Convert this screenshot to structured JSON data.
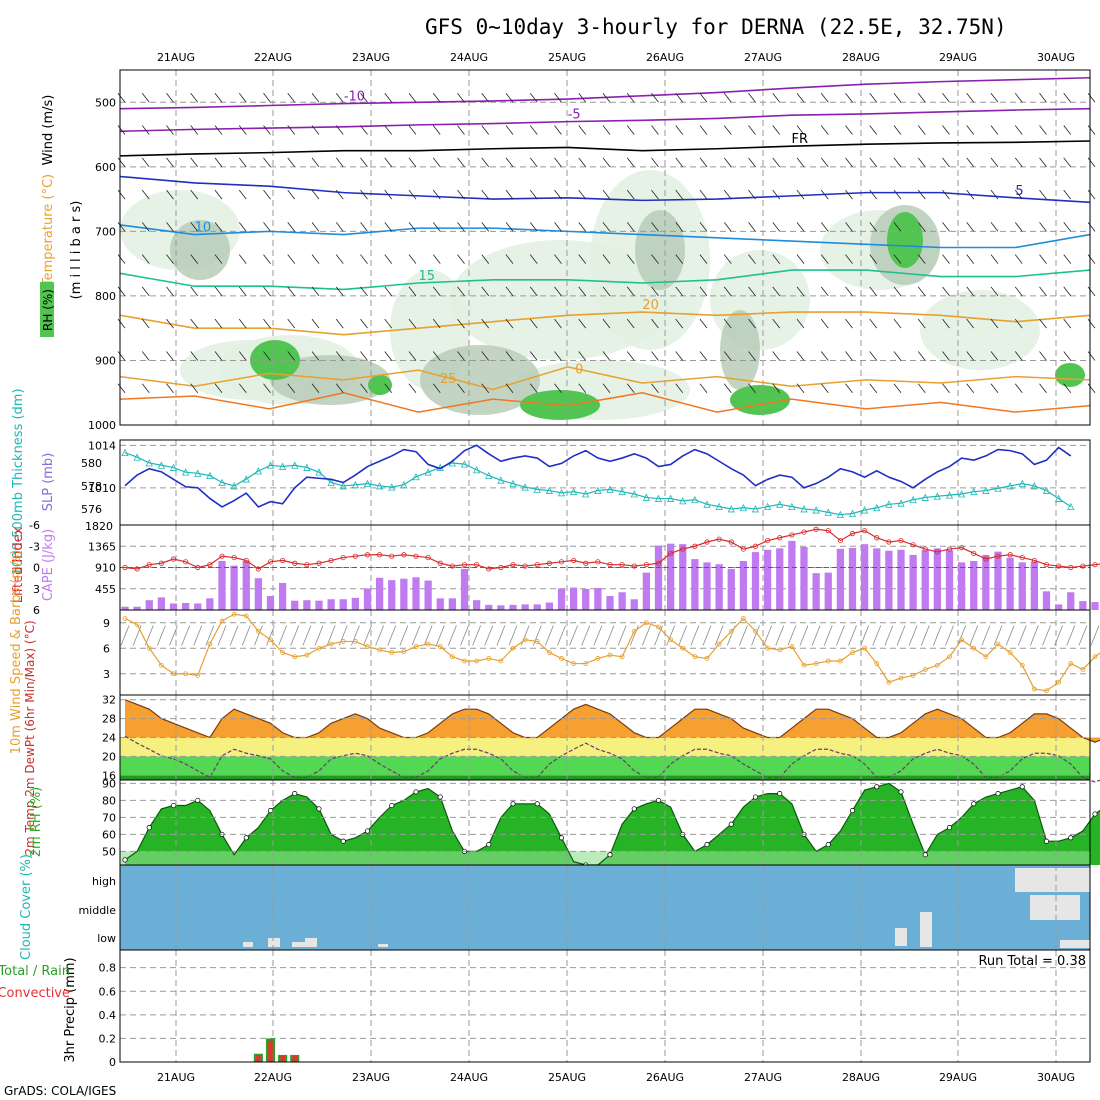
{
  "title": "GFS 0~10day 3-hourly for DERNA (22.5E, 32.75N)",
  "footer": "GrADS: COLA/IGES",
  "date_labels": [
    "21AUG",
    "22AUG",
    "23AUG",
    "24AUG",
    "25AUG",
    "26AUG",
    "27AUG",
    "28AUG",
    "29AUG",
    "30AUG"
  ],
  "colors": {
    "rh_green": "#52c452",
    "slp": "#1e2fc4",
    "thickness": "#1fb7b7",
    "lifted_index": "#d82b2b",
    "cape": "#c07bf0",
    "wind_speed": "#e8a030",
    "temp_orange": "#f5a030",
    "temp_yellow": "#f5f080",
    "rh2m_green": "#26b326",
    "cloud_blue": "#6baed6"
  },
  "chart_data": [
    {
      "type": "area",
      "panel": "upper-air",
      "ylabel_parts": [
        "RH (%)",
        "Temperature (°C)",
        "Wind (m/s)"
      ],
      "yaxis_label": "(m i l l i b a r s)",
      "yticks": [
        500,
        600,
        700,
        800,
        900,
        1000
      ],
      "ylim": [
        450,
        1000
      ],
      "isotherm_labels": [
        "-10",
        "-5",
        "FR",
        "5",
        "10",
        "15",
        "20",
        "25",
        "0"
      ],
      "isotherm_levels": [
        {
          "label": "-10",
          "color": "#8a1fb0",
          "p": [
            510,
            508,
            505,
            502,
            500,
            498,
            495,
            490,
            485,
            478,
            472,
            468,
            465,
            462
          ]
        },
        {
          "label": "-5",
          "color": "#8a1fb0",
          "p": [
            545,
            542,
            540,
            538,
            535,
            533,
            530,
            528,
            525,
            520,
            518,
            515,
            512,
            510
          ]
        },
        {
          "label": "FR",
          "color": "#000000",
          "p": [
            583,
            580,
            578,
            575,
            575,
            572,
            570,
            575,
            572,
            568,
            565,
            563,
            562,
            560
          ]
        },
        {
          "label": "5",
          "color": "#1e2fc4",
          "p": [
            615,
            625,
            630,
            640,
            645,
            650,
            648,
            652,
            650,
            645,
            640,
            640,
            648,
            655
          ]
        },
        {
          "label": "10",
          "color": "#1e8cdc",
          "p": [
            690,
            705,
            700,
            705,
            695,
            695,
            700,
            705,
            710,
            715,
            720,
            725,
            725,
            705
          ]
        },
        {
          "label": "15",
          "color": "#1ec090",
          "p": [
            765,
            785,
            785,
            790,
            780,
            775,
            775,
            780,
            775,
            760,
            760,
            770,
            770,
            760
          ]
        },
        {
          "label": "20",
          "color": "#e8a030",
          "p": [
            830,
            850,
            850,
            860,
            850,
            840,
            830,
            825,
            830,
            825,
            825,
            830,
            840,
            830
          ]
        }
      ]
    },
    {
      "type": "line",
      "panel": "slp-thickness",
      "ylabel_left": "1000-500mb Thickness (dm)",
      "ylabel_right": "SLP (mb)",
      "yticks_left": [
        576,
        578,
        580
      ],
      "yticks_right": [
        1010,
        1014
      ],
      "extra_tick": "1820",
      "series": [
        {
          "name": "SLP (mb)",
          "ylim": [
            1006.5,
            1014.5
          ],
          "values": [
            1010.2,
            1011.2,
            1011.8,
            1011.5,
            1010.8,
            1010.1,
            1010.0,
            1009.0,
            1008.2,
            1008.8,
            1009.5,
            1008.2,
            1008.7,
            1008.5,
            1010.0,
            1011.0,
            1010.9,
            1010.8,
            1010.5,
            1011.2,
            1012.0,
            1012.5,
            1013.0,
            1013.6,
            1013.4,
            1012.2,
            1011.8,
            1012.5,
            1013.5,
            1014.0,
            1013.2,
            1012.5,
            1012.8,
            1013.0,
            1012.8,
            1012.0,
            1012.3,
            1013.0,
            1013.5,
            1012.8,
            1012.5,
            1012.8,
            1013.2,
            1012.8,
            1012.0,
            1012.2,
            1013.0,
            1013.6,
            1013.2,
            1012.5,
            1011.8,
            1011.2,
            1010.2,
            1010.8,
            1011.2,
            1011.0,
            1010.0,
            1010.4,
            1011.0,
            1011.8,
            1011.5,
            1011.0,
            1011.6,
            1011.0,
            1010.6,
            1010.0,
            1010.8,
            1011.5,
            1012.0,
            1012.8,
            1012.6,
            1013.0,
            1013.6,
            1013.5,
            1013.2,
            1012.2,
            1012.6,
            1013.8,
            1013.0
          ]
        },
        {
          "name": "1000-500mb Thickness (dm)",
          "ylim": [
            574.6,
            582.0
          ],
          "values": [
            580.9,
            580.5,
            580.0,
            579.8,
            579.6,
            579.2,
            579.1,
            578.9,
            578.3,
            578.0,
            578.6,
            579.3,
            579.8,
            579.7,
            579.8,
            579.6,
            579.2,
            578.3,
            578.0,
            578.1,
            578.2,
            578.0,
            577.9,
            578.1,
            578.8,
            579.2,
            579.6,
            580.0,
            579.9,
            579.4,
            578.9,
            578.5,
            578.2,
            577.9,
            577.7,
            577.6,
            577.4,
            577.5,
            577.3,
            577.6,
            577.7,
            577.5,
            577.3,
            577.0,
            576.9,
            576.9,
            576.7,
            576.8,
            576.4,
            576.2,
            576.0,
            576.1,
            576.0,
            576.2,
            576.4,
            576.2,
            576.0,
            575.9,
            575.7,
            575.5,
            575.6,
            575.9,
            576.1,
            576.4,
            576.5,
            576.8,
            577.0,
            577.1,
            577.2,
            577.3,
            577.5,
            577.6,
            577.8,
            578.0,
            578.2,
            578.0,
            577.6,
            576.9,
            576.2
          ]
        }
      ]
    },
    {
      "type": "bar",
      "panel": "cape-li",
      "ylabel_left": "Lifted Index",
      "ylabel_right": "CAPE (J/kg)",
      "yticks_left": [
        -6,
        -3,
        0,
        3,
        6
      ],
      "yticks_right": [
        455,
        910,
        1365
      ],
      "series": [
        {
          "name": "CAPE (J/kg)",
          "ylim": [
            0,
            1820
          ],
          "values": [
            70,
            70,
            210,
            270,
            140,
            150,
            140,
            250,
            1050,
            950,
            1050,
            680,
            300,
            580,
            200,
            210,
            200,
            230,
            230,
            260,
            460,
            690,
            640,
            670,
            700,
            630,
            250,
            250,
            880,
            210,
            110,
            100,
            110,
            120,
            120,
            160,
            460,
            480,
            450,
            470,
            300,
            380,
            230,
            800,
            1380,
            1420,
            1410,
            1090,
            1020,
            980,
            880,
            1050,
            1240,
            1290,
            1320,
            1480,
            1350,
            790,
            800,
            1310,
            1330,
            1410,
            1320,
            1270,
            1290,
            1180,
            1280,
            1320,
            1280,
            1020,
            1050,
            1180,
            1250,
            1120,
            1020,
            1040,
            400,
            120,
            380,
            190,
            170,
            270,
            300,
            240,
            440,
            540,
            620,
            480
          ]
        },
        {
          "name": "Lifted Index",
          "ylim": [
            6,
            -6
          ],
          "values": [
            0,
            0.2,
            -0.4,
            -0.6,
            -1.2,
            -0.8,
            0,
            -0.4,
            -1.6,
            -1.4,
            -1.0,
            0.2,
            -0.8,
            -1.0,
            -0.6,
            -0.4,
            -0.6,
            -1.0,
            -1.4,
            -1.6,
            -1.8,
            -1.8,
            -1.6,
            -1.8,
            -1.6,
            -1.4,
            -0.6,
            -0.2,
            -0.4,
            -0.4,
            0.2,
            0,
            -0.4,
            -0.2,
            -0.4,
            -0.6,
            -0.8,
            -1.0,
            -0.6,
            -0.8,
            -0.4,
            -0.4,
            -0.2,
            -0.4,
            -0.6,
            -2.0,
            -2.6,
            -3.0,
            -3.6,
            -4.0,
            -3.6,
            -2.6,
            -3.0,
            -3.8,
            -4.2,
            -4.6,
            -5.0,
            -5.4,
            -5.2,
            -3.8,
            -4.8,
            -5.2,
            -4.2,
            -3.6,
            -3.8,
            -3.2,
            -2.6,
            -2.2,
            -2.6,
            -2.8,
            -2.0,
            -1.2,
            -1.6,
            -1.8,
            -1.4,
            -1.0,
            -0.4,
            -0.2,
            0,
            -0.2,
            -0.4,
            -0.6,
            -0.4,
            -0.8,
            -1.2,
            -1.6,
            -1.4,
            -1.2
          ]
        }
      ]
    },
    {
      "type": "line",
      "panel": "wind",
      "ylabel": "10m Wind Speed & Barbs (m/s)",
      "yticks": [
        3,
        6,
        9
      ],
      "ylim": [
        0.5,
        10.5
      ],
      "values": [
        9.5,
        8.8,
        6.0,
        4.0,
        3.0,
        3.0,
        2.8,
        6.5,
        9.2,
        10.0,
        9.8,
        8.0,
        7.0,
        5.5,
        5.0,
        5.2,
        6.0,
        6.5,
        6.8,
        6.8,
        6.2,
        5.8,
        5.5,
        5.6,
        6.2,
        6.5,
        6.2,
        5.0,
        4.5,
        4.5,
        4.8,
        4.5,
        6.0,
        7.0,
        6.8,
        5.5,
        4.8,
        4.2,
        4.2,
        4.8,
        5.2,
        5.0,
        8.0,
        9.0,
        8.5,
        7.0,
        6.0,
        5.0,
        4.8,
        6.5,
        8.0,
        9.5,
        8.0,
        6.0,
        5.8,
        6.2,
        4.0,
        4.2,
        4.5,
        4.5,
        5.5,
        6.0,
        4.2,
        2.0,
        2.5,
        2.8,
        3.5,
        4.0,
        5.0,
        7.0,
        6.0,
        5.0,
        6.5,
        5.5,
        4.0,
        1.2,
        1.0,
        2.0,
        4.2,
        3.5,
        5.0,
        6.0,
        6.2,
        5.0,
        3.5,
        3.2,
        3.8,
        5.0
      ]
    },
    {
      "type": "area",
      "panel": "temperature",
      "ylabel": "2m Temp 2m DewPt (6hr Min/Max) (°C)",
      "yticks": [
        16,
        20,
        24,
        28,
        32
      ],
      "ylim": [
        15,
        33
      ],
      "temp": [
        32,
        31,
        30,
        28,
        27,
        26,
        25,
        24,
        28,
        30,
        29,
        28,
        27,
        25,
        24,
        24,
        25,
        27,
        28,
        29,
        28,
        26,
        25,
        24,
        24,
        25,
        27,
        29,
        30,
        30,
        29,
        27,
        25,
        24,
        24,
        26,
        28,
        30,
        31,
        30,
        29,
        27,
        25,
        24,
        24,
        26,
        28,
        30,
        30,
        29,
        28,
        26,
        25,
        24,
        24,
        26,
        28,
        30,
        30,
        29,
        28,
        26,
        24,
        24,
        25,
        27,
        29,
        30,
        29,
        28,
        26,
        24,
        24,
        25,
        27,
        29,
        29,
        28,
        26,
        24,
        23,
        24,
        26,
        28,
        28,
        27,
        25,
        24
      ]
    },
    {
      "type": "area",
      "panel": "rh2m",
      "ylabel": "2m RH (%)",
      "yticks": [
        50,
        60,
        70,
        80,
        90
      ],
      "ylim": [
        42,
        92
      ],
      "values": [
        45,
        50,
        64,
        75,
        77,
        77,
        80,
        74,
        60,
        48,
        58,
        64,
        74,
        80,
        84,
        82,
        75,
        60,
        56,
        58,
        62,
        70,
        77,
        80,
        85,
        87,
        82,
        62,
        50,
        50,
        54,
        70,
        78,
        78,
        78,
        72,
        58,
        44,
        42,
        42,
        48,
        66,
        75,
        78,
        80,
        76,
        60,
        50,
        54,
        60,
        66,
        76,
        82,
        84,
        84,
        78,
        60,
        50,
        54,
        62,
        74,
        86,
        88,
        90,
        85,
        66,
        48,
        60,
        64,
        70,
        78,
        82,
        84,
        86,
        88,
        80,
        56,
        56,
        58,
        62,
        72,
        77,
        80,
        82,
        76,
        58,
        56,
        64,
        70,
        78,
        84,
        86
      ]
    },
    {
      "type": "heatmap",
      "panel": "cloud",
      "ylabel": "Cloud Cover (%)",
      "row_labels": [
        "high",
        "middle",
        "low"
      ]
    },
    {
      "type": "bar",
      "panel": "precip",
      "ylabel": "3hr Precip (mm)",
      "legend_parts": [
        "Total / Rain",
        "Convective"
      ],
      "yticks": [
        "0",
        "0.2",
        "0.4",
        "0.6",
        "0.8"
      ],
      "ylim": [
        0,
        0.95
      ],
      "run_total": "Run Total = 0.38",
      "bars": [
        {
          "i": 11,
          "total": 0.07,
          "conv": 0.06
        },
        {
          "i": 12,
          "total": 0.2,
          "conv": 0.18
        },
        {
          "i": 13,
          "total": 0.06,
          "conv": 0.05
        },
        {
          "i": 14,
          "total": 0.06,
          "conv": 0.05
        }
      ]
    }
  ]
}
